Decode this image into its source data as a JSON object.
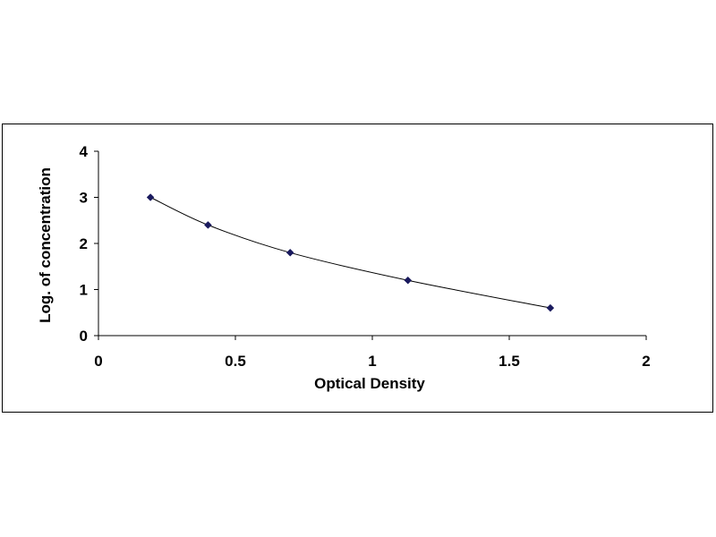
{
  "chart_data": {
    "type": "scatter",
    "title": "",
    "xlabel": "Optical Density",
    "ylabel": "Log. of concentration",
    "xlim": [
      0,
      2
    ],
    "ylim": [
      0,
      4
    ],
    "x_ticks": [
      "0",
      "0.5",
      "1",
      "1.5",
      "2"
    ],
    "y_ticks": [
      "0",
      "1",
      "2",
      "3",
      "4"
    ],
    "grid": false,
    "legend": "none",
    "series": [
      {
        "x": [
          0.19,
          0.4,
          0.7,
          1.13,
          1.65
        ],
        "y": [
          3.0,
          2.4,
          1.8,
          1.2,
          0.6
        ],
        "marker": "diamond",
        "color": "#1a1a5e",
        "line": "smooth"
      }
    ]
  }
}
